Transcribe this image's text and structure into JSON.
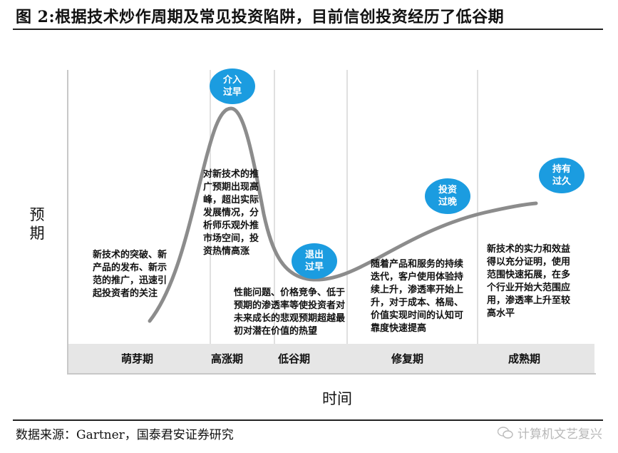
{
  "title": "图  2:根据技术炒作周期及常见投资陷阱，目前信创投资经历了低谷期",
  "source": "数据来源：Gartner，国泰君安证券研究",
  "watermark": "计算机文艺复兴",
  "axes": {
    "y_label_line1": "预",
    "y_label_line2": "期",
    "x_label": "时间"
  },
  "phases": [
    {
      "label": "萌芽期"
    },
    {
      "label": "高涨期"
    },
    {
      "label": "低谷期"
    },
    {
      "label": "修复期"
    },
    {
      "label": "成熟期"
    }
  ],
  "bubbles": [
    {
      "line1": "介入",
      "line2": "过早"
    },
    {
      "line1": "退出",
      "line2": "过早"
    },
    {
      "line1": "投资",
      "line2": "过晚"
    },
    {
      "line1": "持有",
      "line2": "过久"
    }
  ],
  "descriptions": {
    "germination": [
      "新技术的突破、新",
      "产品的发布、新示",
      "范的推广，迅速引",
      "起投资者的关注"
    ],
    "hype": [
      "对新技术的推",
      "广预期出现高",
      "峰，超出实际",
      "发展情况，分",
      "析师乐观外推",
      "市场空间，投",
      "资热情高涨"
    ],
    "trough": [
      "性能问题、价格竞争、低于",
      "预期的渗透率等使投资者对",
      "未来成长的悲观预期超越最",
      "初对潜在价值的热望"
    ],
    "recovery": [
      "随着产品和服务的持续",
      "迭代，客户使用体验持",
      "续上升，渗透率开始上",
      "升，对于成本、格局、",
      "价值实现时间的认知可",
      "靠度快速提高"
    ],
    "maturity": [
      "新技术的实力和效益",
      "得以充分证明，使用",
      "范围快速拓展，在多",
      "个行业开始大范围应",
      "用，渗透率上升至较",
      "高水平"
    ]
  },
  "colors": {
    "bubble": "#1b9ce0",
    "curve": "#8c8c8c",
    "band": "#e6e6e6",
    "divider": "#d5d5d5"
  }
}
